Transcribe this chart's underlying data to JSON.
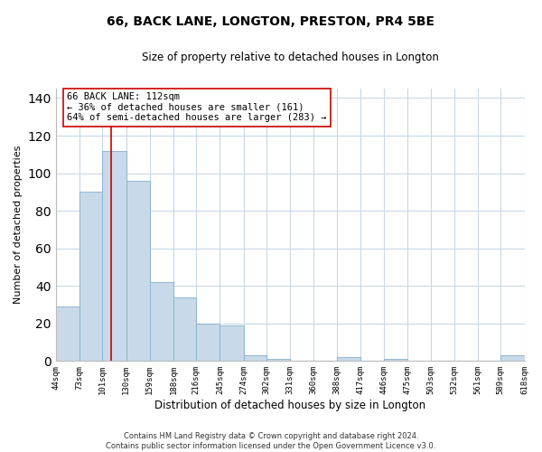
{
  "title": "66, BACK LANE, LONGTON, PRESTON, PR4 5BE",
  "subtitle": "Size of property relative to detached houses in Longton",
  "xlabel": "Distribution of detached houses by size in Longton",
  "ylabel": "Number of detached properties",
  "bar_edges": [
    44,
    73,
    101,
    130,
    159,
    188,
    216,
    245,
    274,
    302,
    331,
    360,
    388,
    417,
    446,
    475,
    503,
    532,
    561,
    589,
    618
  ],
  "bar_heights": [
    29,
    90,
    112,
    96,
    42,
    34,
    20,
    19,
    3,
    1,
    0,
    0,
    2,
    0,
    1,
    0,
    0,
    0,
    0,
    3
  ],
  "bar_color": "#c8daea",
  "bar_edgecolor": "#85aec8",
  "vline_x": 112,
  "vline_color": "#cc0000",
  "annotation_lines": [
    "66 BACK LANE: 112sqm",
    "← 36% of detached houses are smaller (161)",
    "64% of semi-detached houses are larger (283) →"
  ],
  "ylim": [
    0,
    145
  ],
  "tick_labels": [
    "44sqm",
    "73sqm",
    "101sqm",
    "130sqm",
    "159sqm",
    "188sqm",
    "216sqm",
    "245sqm",
    "274sqm",
    "302sqm",
    "331sqm",
    "360sqm",
    "388sqm",
    "417sqm",
    "446sqm",
    "475sqm",
    "503sqm",
    "532sqm",
    "561sqm",
    "589sqm",
    "618sqm"
  ],
  "footer_line1": "Contains HM Land Registry data © Crown copyright and database right 2024.",
  "footer_line2": "Contains public sector information licensed under the Open Government Licence v3.0.",
  "background_color": "#ffffff",
  "grid_color": "#c8d8e8",
  "title_fontsize": 10,
  "subtitle_fontsize": 8.5,
  "ylabel_fontsize": 8,
  "xlabel_fontsize": 8.5,
  "tick_fontsize": 6.5,
  "ann_fontsize": 7.5,
  "footer_fontsize": 6
}
